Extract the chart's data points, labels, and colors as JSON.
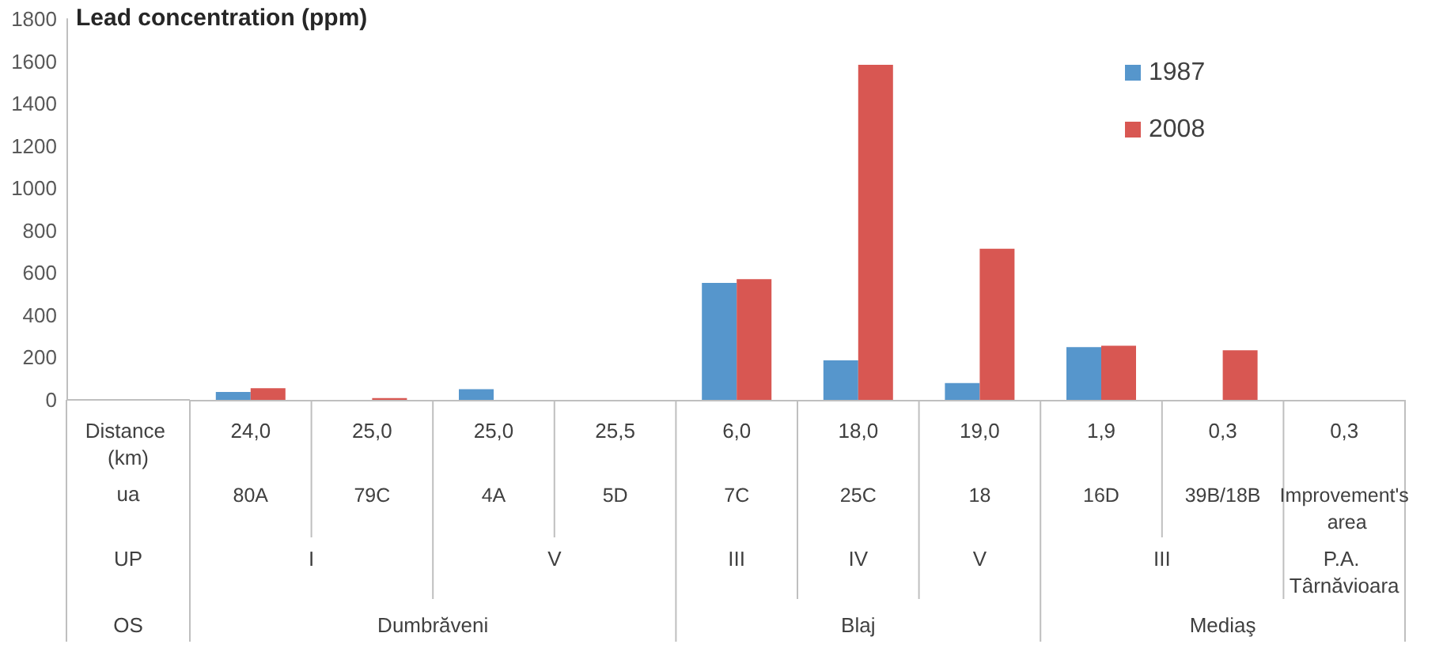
{
  "chart_data": {
    "type": "bar",
    "ylabel": "Lead concentration (ppm)",
    "categories": [
      "80A",
      "79C",
      "4A",
      "5D",
      "7C",
      "25C",
      "18",
      "16D",
      "39B/18B",
      "Improvement's area"
    ],
    "series": [
      {
        "name": "1987",
        "color": "#5696cc",
        "values": [
          37,
          null,
          50,
          null,
          553,
          187,
          79,
          249,
          null,
          null
        ]
      },
      {
        "name": "2008",
        "color": "#d85752",
        "values": [
          55,
          8,
          null,
          null,
          570,
          1583,
          714,
          256,
          234,
          null
        ]
      }
    ],
    "ylim": [
      0,
      1800
    ],
    "yticks": [
      0,
      200,
      400,
      600,
      800,
      1000,
      1200,
      1400,
      1600,
      1800
    ],
    "grid": false,
    "legend": "top right",
    "annotations": [
      "Distance (km)",
      "24,0",
      "25,0",
      "25,0",
      "25,5",
      "6,0",
      "18,0",
      "19,0",
      "1,9",
      "0,3",
      "0,3",
      "ua",
      "UP",
      "I",
      "V",
      "III",
      "IV",
      "V",
      "III",
      "P.A. Târnăvioara",
      "OS",
      "Dumbrăveni",
      "Blaj",
      "Mediaş"
    ]
  }
}
